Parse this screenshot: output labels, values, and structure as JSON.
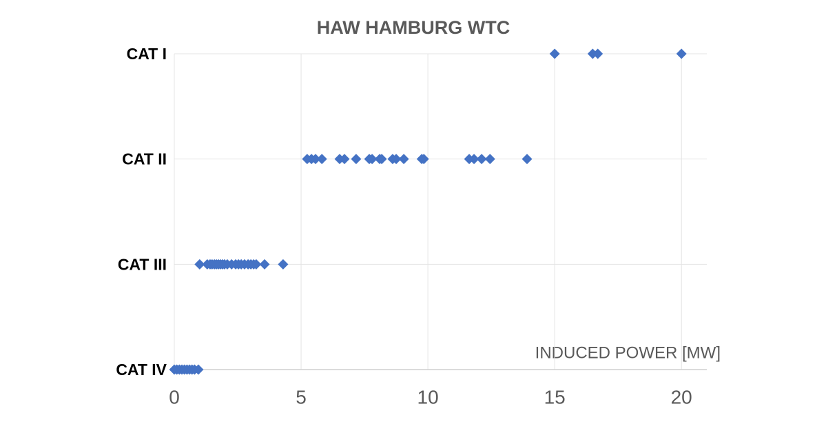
{
  "chart_data": {
    "type": "scatter",
    "title": "HAW HAMBURG WTC",
    "x_label": "INDUCED POWER [MW]",
    "color": "#4472c4",
    "grid": true,
    "xlim": [
      0,
      21
    ],
    "xticks": [
      0,
      5,
      10,
      15,
      20
    ],
    "ylim": [
      1,
      4
    ],
    "yticks": [
      {
        "value": 1,
        "label": "CAT IV"
      },
      {
        "value": 2,
        "label": "CAT III"
      },
      {
        "value": 3,
        "label": "CAT II"
      },
      {
        "value": 4,
        "label": "CAT I"
      }
    ],
    "x": [
      15.0,
      16.5,
      16.7,
      20.0,
      5.24,
      5.41,
      5.57,
      5.82,
      6.52,
      6.71,
      7.17,
      7.69,
      7.8,
      8.1,
      8.18,
      8.61,
      8.75,
      9.05,
      9.76,
      9.84,
      11.63,
      11.82,
      12.12,
      12.45,
      13.91,
      1.0,
      1.3,
      1.41,
      1.49,
      1.58,
      1.66,
      1.74,
      1.82,
      1.9,
      1.98,
      2.09,
      2.26,
      2.42,
      2.53,
      2.64,
      2.77,
      2.91,
      3.02,
      3.13,
      3.23,
      3.56,
      4.29,
      0,
      0.1,
      0.2,
      0.3,
      0.4,
      0.5,
      0.6,
      0.7,
      0.8,
      0.95
    ],
    "y": [
      4,
      4,
      4,
      4,
      3,
      3,
      3,
      3,
      3,
      3,
      3,
      3,
      3,
      3,
      3,
      3,
      3,
      3,
      3,
      3,
      3,
      3,
      3,
      3,
      3,
      2,
      2,
      2,
      2,
      2,
      2,
      2,
      2,
      2,
      2,
      2,
      2,
      2,
      2,
      2,
      2,
      2,
      2,
      2,
      2,
      2,
      2,
      1,
      1,
      1,
      1,
      1,
      1,
      1,
      1,
      1,
      1
    ]
  }
}
